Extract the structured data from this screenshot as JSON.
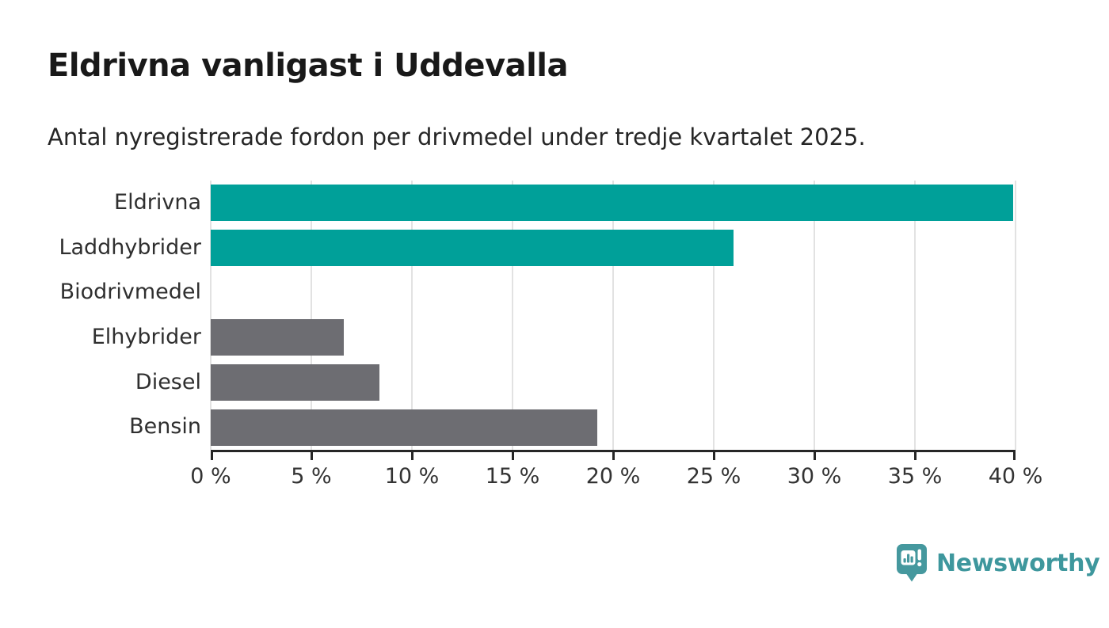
{
  "header": {
    "title": "Eldrivna vanligast i Uddevalla",
    "subtitle": "Antal nyregistrerade fordon per drivmedel under tredje kvartalet 2025."
  },
  "chart_data": {
    "type": "bar",
    "orientation": "horizontal",
    "title": "Eldrivna vanligast i Uddevalla",
    "subtitle": "Antal nyregistrerade fordon per drivmedel under tredje kvartalet 2025.",
    "categories": [
      "Eldrivna",
      "Laddhybrider",
      "Biodrivmedel",
      "Elhybrider",
      "Diesel",
      "Bensin"
    ],
    "values": [
      39.9,
      26.0,
      0.0,
      6.6,
      8.4,
      19.2
    ],
    "unit": "%",
    "xlim": [
      0,
      40
    ],
    "xticks": [
      0,
      5,
      10,
      15,
      20,
      25,
      30,
      35,
      40
    ],
    "xtick_labels": [
      "0 %",
      "5 %",
      "10 %",
      "15 %",
      "20 %",
      "25 %",
      "30 %",
      "35 %",
      "40 %"
    ],
    "bar_colors": [
      "#00a099",
      "#00a099",
      "#6d6d72",
      "#6d6d72",
      "#6d6d72",
      "#6d6d72"
    ],
    "grid": "vertical-gridlines-on",
    "legend": "none",
    "xlabel": "",
    "ylabel": ""
  },
  "colors": {
    "accent_teal": "#00a099",
    "neutral_gray": "#6d6d72",
    "gridline": "#e2e2e2",
    "axis": "#262626",
    "logo_teal": "#3e979d"
  },
  "footer": {
    "brand": "Newsworthy",
    "logo_icon": "newsworthy-speech-bubble-bar-chart-icon"
  }
}
